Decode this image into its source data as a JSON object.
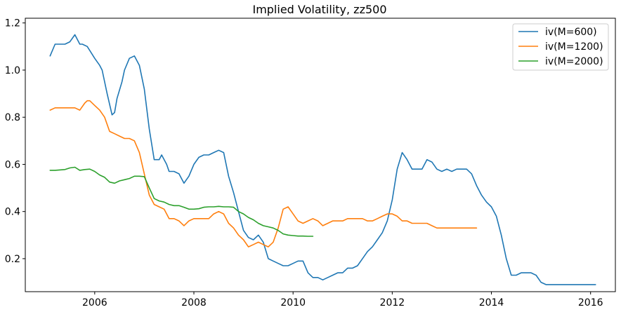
{
  "chart_data": {
    "type": "line",
    "title": "Implied Volatility, zz500",
    "xlabel": "",
    "ylabel": "",
    "xlim": [
      2004.6,
      2016.5
    ],
    "ylim": [
      0.06,
      1.22
    ],
    "x_ticks": [
      2006,
      2008,
      2010,
      2012,
      2014,
      2016
    ],
    "x_tick_labels": [
      "2006",
      "2008",
      "2010",
      "2012",
      "2014",
      "2016"
    ],
    "y_ticks": [
      0.2,
      0.4,
      0.6,
      0.8,
      1.0,
      1.2
    ],
    "y_tick_labels": [
      "0.2",
      "0.4",
      "0.6",
      "0.8",
      "1.0",
      "1.2"
    ],
    "grid": false,
    "legend_position": "upper right",
    "series": [
      {
        "name": "iv(M=600)",
        "color": "#1f77b4",
        "x": [
          2005.1,
          2005.2,
          2005.4,
          2005.5,
          2005.6,
          2005.7,
          2005.75,
          2005.85,
          2006.0,
          2006.1,
          2006.15,
          2006.25,
          2006.35,
          2006.4,
          2006.45,
          2006.55,
          2006.6,
          2006.7,
          2006.8,
          2006.9,
          2007.0,
          2007.1,
          2007.2,
          2007.3,
          2007.35,
          2007.45,
          2007.5,
          2007.6,
          2007.7,
          2007.8,
          2007.9,
          2008.0,
          2008.1,
          2008.2,
          2008.3,
          2008.4,
          2008.5,
          2008.6,
          2008.7,
          2008.8,
          2008.9,
          2009.0,
          2009.1,
          2009.2,
          2009.3,
          2009.4,
          2009.5,
          2009.6,
          2009.7,
          2009.8,
          2009.9,
          2010.0,
          2010.1,
          2010.2,
          2010.3,
          2010.4,
          2010.5,
          2010.6,
          2010.7,
          2010.8,
          2010.9,
          2011.0,
          2011.1,
          2011.2,
          2011.3,
          2011.4,
          2011.5,
          2011.6,
          2011.7,
          2011.8,
          2011.9,
          2012.0,
          2012.1,
          2012.2,
          2012.3,
          2012.4,
          2012.5,
          2012.6,
          2012.7,
          2012.8,
          2012.9,
          2013.0,
          2013.1,
          2013.2,
          2013.3,
          2013.4,
          2013.5,
          2013.6,
          2013.7,
          2013.8,
          2013.9,
          2014.0,
          2014.1,
          2014.2,
          2014.3,
          2014.4,
          2014.5,
          2014.6,
          2014.7,
          2014.8,
          2014.9,
          2015.0,
          2015.1,
          2015.2,
          2015.3,
          2015.4,
          2015.5,
          2015.6,
          2015.7,
          2015.8,
          2015.9,
          2016.0,
          2016.1
        ],
        "values": [
          1.06,
          1.11,
          1.11,
          1.12,
          1.15,
          1.11,
          1.11,
          1.1,
          1.05,
          1.02,
          1.0,
          0.9,
          0.81,
          0.82,
          0.88,
          0.95,
          1.0,
          1.05,
          1.06,
          1.02,
          0.92,
          0.75,
          0.62,
          0.62,
          0.64,
          0.6,
          0.57,
          0.57,
          0.56,
          0.52,
          0.55,
          0.6,
          0.63,
          0.64,
          0.64,
          0.65,
          0.66,
          0.65,
          0.55,
          0.48,
          0.4,
          0.32,
          0.29,
          0.28,
          0.3,
          0.27,
          0.2,
          0.19,
          0.18,
          0.17,
          0.17,
          0.18,
          0.19,
          0.19,
          0.14,
          0.12,
          0.12,
          0.11,
          0.12,
          0.13,
          0.14,
          0.14,
          0.16,
          0.16,
          0.17,
          0.2,
          0.23,
          0.25,
          0.28,
          0.31,
          0.36,
          0.45,
          0.58,
          0.65,
          0.62,
          0.58,
          0.58,
          0.58,
          0.62,
          0.61,
          0.58,
          0.57,
          0.58,
          0.57,
          0.58,
          0.58,
          0.58,
          0.56,
          0.51,
          0.47,
          0.44,
          0.42,
          0.38,
          0.3,
          0.2,
          0.13,
          0.13,
          0.14,
          0.14,
          0.14,
          0.13,
          0.1,
          0.09,
          0.09,
          0.09,
          0.09,
          0.09,
          0.09,
          0.09,
          0.09,
          0.09,
          0.09,
          0.09
        ]
      },
      {
        "name": "iv(M=1200)",
        "color": "#ff7f0e",
        "x": [
          2005.1,
          2005.2,
          2005.4,
          2005.6,
          2005.7,
          2005.8,
          2005.85,
          2005.9,
          2006.0,
          2006.1,
          2006.2,
          2006.3,
          2006.4,
          2006.5,
          2006.6,
          2006.7,
          2006.8,
          2006.9,
          2007.0,
          2007.1,
          2007.2,
          2007.3,
          2007.4,
          2007.5,
          2007.6,
          2007.7,
          2007.8,
          2007.9,
          2008.0,
          2008.1,
          2008.2,
          2008.3,
          2008.4,
          2008.5,
          2008.6,
          2008.7,
          2008.8,
          2008.9,
          2009.0,
          2009.1,
          2009.2,
          2009.3,
          2009.4,
          2009.5,
          2009.6,
          2009.7,
          2009.8,
          2009.9,
          2010.0,
          2010.1,
          2010.2,
          2010.3,
          2010.4,
          2010.5,
          2010.6,
          2010.7,
          2010.8,
          2010.9,
          2011.0,
          2011.1,
          2011.2,
          2011.3,
          2011.4,
          2011.5,
          2011.6,
          2011.7,
          2011.8,
          2011.9,
          2012.0,
          2012.1,
          2012.2,
          2012.3,
          2012.4,
          2012.5,
          2012.6,
          2012.7,
          2012.8,
          2012.9,
          2013.0,
          2013.1,
          2013.2,
          2013.3,
          2013.4,
          2013.5,
          2013.6,
          2013.7
        ],
        "values": [
          0.83,
          0.84,
          0.84,
          0.84,
          0.83,
          0.86,
          0.87,
          0.87,
          0.85,
          0.83,
          0.8,
          0.74,
          0.73,
          0.72,
          0.71,
          0.71,
          0.7,
          0.65,
          0.56,
          0.47,
          0.43,
          0.42,
          0.41,
          0.37,
          0.37,
          0.36,
          0.34,
          0.36,
          0.37,
          0.37,
          0.37,
          0.37,
          0.39,
          0.4,
          0.39,
          0.35,
          0.33,
          0.3,
          0.28,
          0.25,
          0.26,
          0.27,
          0.26,
          0.25,
          0.27,
          0.33,
          0.41,
          0.42,
          0.39,
          0.36,
          0.35,
          0.36,
          0.37,
          0.36,
          0.34,
          0.35,
          0.36,
          0.36,
          0.36,
          0.37,
          0.37,
          0.37,
          0.37,
          0.36,
          0.36,
          0.37,
          0.38,
          0.39,
          0.39,
          0.38,
          0.36,
          0.36,
          0.35,
          0.35,
          0.35,
          0.35,
          0.34,
          0.33,
          0.33,
          0.33,
          0.33,
          0.33,
          0.33,
          0.33,
          0.33,
          0.33
        ]
      },
      {
        "name": "iv(M=2000)",
        "color": "#2ca02c",
        "x": [
          2005.1,
          2005.2,
          2005.4,
          2005.5,
          2005.6,
          2005.7,
          2005.8,
          2005.9,
          2006.0,
          2006.1,
          2006.2,
          2006.3,
          2006.4,
          2006.5,
          2006.6,
          2006.7,
          2006.8,
          2006.9,
          2007.0,
          2007.1,
          2007.2,
          2007.3,
          2007.4,
          2007.5,
          2007.6,
          2007.7,
          2007.8,
          2007.9,
          2008.0,
          2008.1,
          2008.2,
          2008.3,
          2008.4,
          2008.5,
          2008.6,
          2008.7,
          2008.8,
          2008.9,
          2009.0,
          2009.1,
          2009.2,
          2009.3,
          2009.4,
          2009.5,
          2009.6,
          2009.7,
          2009.8,
          2009.9,
          2010.0,
          2010.1,
          2010.2,
          2010.3,
          2010.4
        ],
        "values": [
          0.575,
          0.575,
          0.578,
          0.585,
          0.588,
          0.575,
          0.578,
          0.58,
          0.57,
          0.555,
          0.545,
          0.525,
          0.52,
          0.53,
          0.535,
          0.54,
          0.55,
          0.55,
          0.548,
          0.5,
          0.455,
          0.445,
          0.44,
          0.43,
          0.425,
          0.425,
          0.418,
          0.41,
          0.41,
          0.412,
          0.418,
          0.42,
          0.42,
          0.422,
          0.42,
          0.42,
          0.418,
          0.4,
          0.39,
          0.375,
          0.365,
          0.35,
          0.34,
          0.335,
          0.33,
          0.32,
          0.305,
          0.3,
          0.298,
          0.296,
          0.296,
          0.295,
          0.295
        ]
      }
    ]
  }
}
